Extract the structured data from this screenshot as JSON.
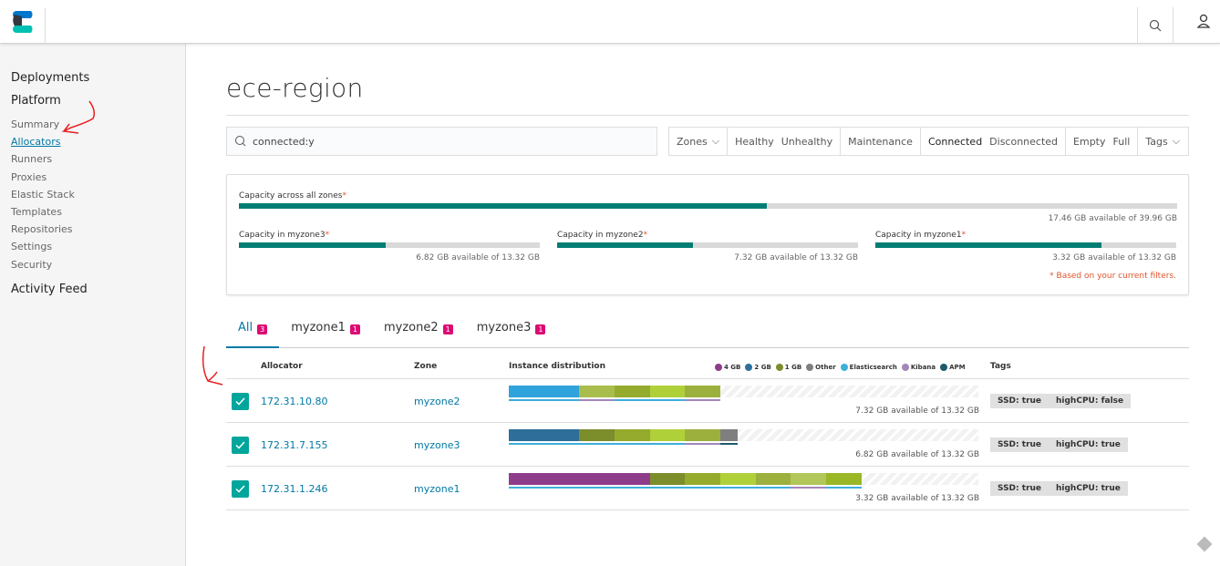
{
  "header": {
    "logo": "Elastic Cloud Enterprise",
    "search_icon": "search-icon",
    "user_icon": "user-icon"
  },
  "sidebar": {
    "deployments": "Deployments",
    "platform": "Platform",
    "items": [
      {
        "label": "Summary"
      },
      {
        "label": "Allocators",
        "active": true
      },
      {
        "label": "Runners"
      },
      {
        "label": "Proxies"
      },
      {
        "label": "Elastic Stack"
      },
      {
        "label": "Templates"
      },
      {
        "label": "Repositories"
      },
      {
        "label": "Settings"
      },
      {
        "label": "Security"
      }
    ],
    "activity": "Activity Feed"
  },
  "page": {
    "title": "ece-region"
  },
  "filters": {
    "search_value": "connected:y",
    "zones": "Zones",
    "healthy": "Healthy",
    "unhealthy": "Unhealthy",
    "maintenance": "Maintenance",
    "connected": "Connected",
    "disconnected": "Disconnected",
    "empty": "Empty",
    "full": "Full",
    "tags": "Tags"
  },
  "capacity": {
    "all": {
      "label": "Capacity across all zones",
      "used_pct": 56.3,
      "avail": "17.46 GB available of 39.96 GB"
    },
    "zones": [
      {
        "label": "Capacity in myzone3",
        "used_pct": 48.8,
        "avail": "6.82 GB available of 13.32 GB"
      },
      {
        "label": "Capacity in myzone2",
        "used_pct": 45.0,
        "avail": "7.32 GB available of 13.32 GB"
      },
      {
        "label": "Capacity in myzone1",
        "used_pct": 75.1,
        "avail": "3.32 GB available of 13.32 GB"
      }
    ],
    "note": "* Based on your current filters.",
    "star": "*"
  },
  "tabs": [
    {
      "label": "All",
      "count": "3"
    },
    {
      "label": "myzone1",
      "count": "1"
    },
    {
      "label": "myzone2",
      "count": "1"
    },
    {
      "label": "myzone3",
      "count": "1"
    }
  ],
  "table": {
    "headers": {
      "allocator": "Allocator",
      "zone": "Zone",
      "dist": "Instance distribution",
      "tags": "Tags"
    },
    "legend": [
      {
        "label": "4 GB",
        "color": "#8e3d8a"
      },
      {
        "label": "2 GB",
        "color": "#2d6f9a"
      },
      {
        "label": "1 GB",
        "color": "#7c8d2c"
      },
      {
        "label": "Other",
        "color": "#7f7f7f"
      },
      {
        "label": "Elasticsearch",
        "color": "#3eaedb"
      },
      {
        "label": "Kibana",
        "color": "#a387b8"
      },
      {
        "label": "APM",
        "color": "#1d5a6c"
      }
    ],
    "capacity_gb": 13.32,
    "rows": [
      {
        "allocator": "172.31.10.80",
        "zone": "myzone2",
        "avail": "7.32 GB available of 13.32 GB",
        "tags": [
          "SSD: true",
          "highCPU: false"
        ],
        "segments": [
          {
            "gb": 2,
            "color": "#2ea3dc"
          },
          {
            "gb": 1,
            "color": "#a9bd4c"
          },
          {
            "gb": 1,
            "color": "#95ab2d"
          },
          {
            "gb": 1,
            "color": "#b0d03a"
          },
          {
            "gb": 1,
            "color": "#9cb03e"
          }
        ],
        "types": [
          {
            "gb": 2,
            "color": "#3eaedb"
          },
          {
            "gb": 1,
            "color": "#a387b8"
          },
          {
            "gb": 2,
            "color": "#3eaedb"
          },
          {
            "gb": 1,
            "color": "#a387b8"
          }
        ]
      },
      {
        "allocator": "172.31.7.155",
        "zone": "myzone3",
        "avail": "6.82 GB available of 13.32 GB",
        "tags": [
          "SSD: true",
          "highCPU: true"
        ],
        "segments": [
          {
            "gb": 2,
            "color": "#2d6f9a"
          },
          {
            "gb": 1,
            "color": "#7c8d2c"
          },
          {
            "gb": 1,
            "color": "#95ab2d"
          },
          {
            "gb": 1,
            "color": "#b0d03a"
          },
          {
            "gb": 1,
            "color": "#9cb03e"
          },
          {
            "gb": 0.5,
            "color": "#7f7f7f"
          }
        ],
        "types": [
          {
            "gb": 5,
            "color": "#3eaedb"
          },
          {
            "gb": 1,
            "color": "#a387b8"
          },
          {
            "gb": 0.5,
            "color": "#1d5a6c"
          }
        ]
      },
      {
        "allocator": "172.31.1.246",
        "zone": "myzone1",
        "avail": "3.32 GB available of 13.32 GB",
        "tags": [
          "SSD: true",
          "highCPU: true"
        ],
        "segments": [
          {
            "gb": 4,
            "color": "#8e3d8a"
          },
          {
            "gb": 1,
            "color": "#7c8d2c"
          },
          {
            "gb": 1,
            "color": "#95ab2d"
          },
          {
            "gb": 1,
            "color": "#b0d03a"
          },
          {
            "gb": 1,
            "color": "#9cb03e"
          },
          {
            "gb": 1,
            "color": "#b1c75a"
          },
          {
            "gb": 1,
            "color": "#9ab826"
          }
        ],
        "types": [
          {
            "gb": 8,
            "color": "#3eaedb"
          },
          {
            "gb": 1,
            "color": "#a387b8"
          },
          {
            "gb": 1,
            "color": "#3eaedb"
          }
        ]
      }
    ]
  }
}
